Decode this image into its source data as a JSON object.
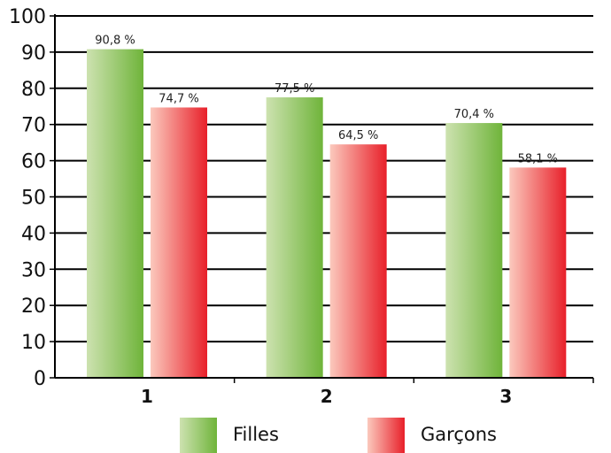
{
  "chart_data": {
    "type": "bar",
    "categories": [
      "1",
      "2",
      "3"
    ],
    "series": [
      {
        "name": "Filles",
        "values": [
          90.8,
          77.5,
          70.4
        ],
        "labels": [
          "90,8 %",
          "77,5 %",
          "70,4 %"
        ],
        "color_light": "#cde2b0",
        "color_dark": "#6fb43a"
      },
      {
        "name": "Garçons",
        "values": [
          74.7,
          64.5,
          58.1
        ],
        "labels": [
          "74,7 %",
          "64,5 %",
          "58,1 %"
        ],
        "color_light": "#fbc9bd",
        "color_dark": "#e8202a"
      }
    ],
    "yticks": [
      "0",
      "10",
      "20",
      "30",
      "40",
      "50",
      "60",
      "70",
      "80",
      "90",
      "100"
    ],
    "ylim": [
      0,
      100
    ],
    "grid": true,
    "legend": "bottom"
  }
}
